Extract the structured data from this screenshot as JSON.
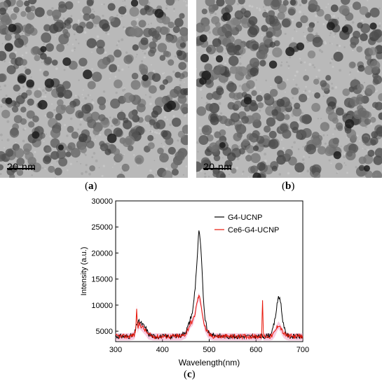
{
  "panels": {
    "a": {
      "scale_bar": "20 nm",
      "caption_open": "(",
      "caption_letter": "a",
      "caption_close": ")"
    },
    "b": {
      "scale_bar": "20 nm",
      "caption_open": "(",
      "caption_letter": "b",
      "caption_close": ")"
    },
    "c": {
      "caption_open": "(",
      "caption_letter": "c",
      "caption_close": ")"
    }
  },
  "chart_data": {
    "type": "line",
    "title": "",
    "xlabel": "Wavelength(nm)",
    "ylabel": "Intensity (a.u.)",
    "xlim": [
      300,
      700
    ],
    "ylim": [
      3000,
      30000
    ],
    "x_ticks": [
      "300",
      "400",
      "500",
      "600",
      "700"
    ],
    "y_ticks": [
      "5000",
      "10000",
      "15000",
      "20000",
      "25000",
      "30000"
    ],
    "legend_position": "top-right",
    "grid": false,
    "series": [
      {
        "name": "G4-UCNP",
        "color": "#000000",
        "x": [
          300,
          330,
          340,
          345,
          350,
          355,
          360,
          365,
          370,
          380,
          400,
          420,
          440,
          450,
          455,
          460,
          465,
          470,
          475,
          478,
          482,
          486,
          490,
          495,
          500,
          510,
          530,
          560,
          600,
          620,
          630,
          635,
          640,
          645,
          648,
          652,
          656,
          660,
          665,
          670,
          680,
          700
        ],
        "y": [
          4000,
          4000,
          4300,
          6500,
          6800,
          6500,
          6000,
          5500,
          4500,
          4000,
          4000,
          4000,
          4200,
          5000,
          6000,
          7500,
          9000,
          13500,
          20000,
          24500,
          21000,
          14000,
          8000,
          5500,
          4500,
          4200,
          4000,
          4000,
          4000,
          4000,
          4300,
          5000,
          7000,
          10000,
          11800,
          11000,
          8000,
          5500,
          4500,
          4000,
          4000,
          4000
        ]
      },
      {
        "name": "Ce6-G4-UCNP",
        "color": "#e8170a",
        "x": [
          300,
          330,
          340,
          343,
          345,
          347,
          350,
          355,
          360,
          365,
          370,
          380,
          400,
          420,
          440,
          450,
          455,
          460,
          465,
          470,
          475,
          478,
          482,
          486,
          490,
          495,
          500,
          510,
          530,
          560,
          600,
          612,
          614,
          616,
          620,
          630,
          635,
          640,
          645,
          648,
          652,
          656,
          660,
          665,
          670,
          680,
          700
        ],
        "y": [
          4000,
          4000,
          4300,
          5500,
          9500,
          5500,
          6400,
          6000,
          5500,
          5000,
          4300,
          4000,
          4000,
          4000,
          4000,
          4500,
          5500,
          6500,
          7000,
          8500,
          11000,
          11800,
          10500,
          8000,
          6000,
          5000,
          4300,
          4000,
          4000,
          4000,
          4000,
          4000,
          10600,
          4000,
          4000,
          4000,
          4200,
          4800,
          5800,
          6300,
          5800,
          5000,
          4500,
          4200,
          4000,
          4000,
          4000
        ]
      }
    ]
  }
}
